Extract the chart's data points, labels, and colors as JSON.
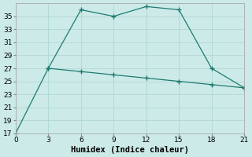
{
  "xlabel": "Humidex (Indice chaleur)",
  "background_color": "#cceae7",
  "line1_x": [
    0,
    3,
    6,
    9,
    12,
    15,
    18,
    21
  ],
  "line1_y": [
    17,
    27,
    36,
    35,
    36.5,
    36,
    27,
    24
  ],
  "line2_x": [
    3,
    6,
    9,
    12,
    15,
    18,
    21
  ],
  "line2_y": [
    27,
    26.5,
    26,
    25.5,
    25,
    24.5,
    24
  ],
  "line_color": "#1e7b72",
  "xlim": [
    0,
    21
  ],
  "ylim": [
    17,
    37
  ],
  "xticks": [
    0,
    3,
    6,
    9,
    12,
    15,
    18,
    21
  ],
  "yticks": [
    17,
    19,
    21,
    23,
    25,
    27,
    29,
    31,
    33,
    35
  ],
  "grid_color": "#b0d8d4",
  "tick_fontsize": 6.5,
  "xlabel_fontsize": 7.5
}
